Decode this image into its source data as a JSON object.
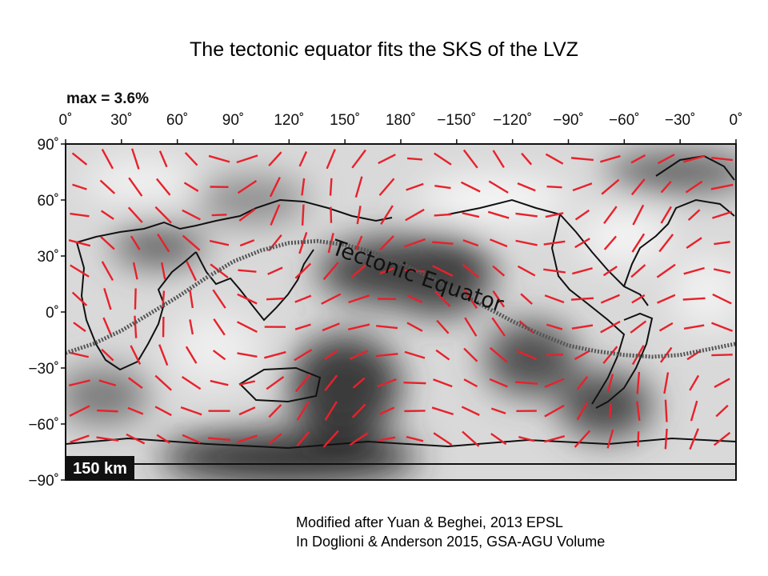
{
  "slide": {
    "title": "The tectonic equator fits the SKS of the LVZ",
    "caption": [
      "Modified after Yuan & Beghei, 2013 EPSL",
      "In Doglioni & Anderson 2015, GSA-AGU Volume"
    ]
  },
  "map": {
    "max_label": "max = 3.6%",
    "depth_label": "150 km",
    "annotation": "Tectonic Equator",
    "longitude_ticks": [
      "0˚",
      "30˚",
      "60˚",
      "90˚",
      "120˚",
      "150˚",
      "180˚",
      "−150˚",
      "−120˚",
      "−90˚",
      "−60˚",
      "−30˚",
      "0˚"
    ],
    "latitude_ticks": [
      "90˚",
      "60˚",
      "30˚",
      "0˚",
      "−30˚",
      "−60˚",
      "−90˚"
    ],
    "lon_range": [
      0,
      360
    ],
    "lat_range": [
      -90,
      90
    ],
    "grid_step_deg": 15,
    "colors": {
      "anisotropy_bar": "#e8212b",
      "coastline": "#111111",
      "equator": "#555555",
      "background_light": "#f2f2f2",
      "background_dark": "#3a3a3a"
    },
    "tectonic_equator_path": [
      [
        0,
        -22
      ],
      [
        15,
        -17
      ],
      [
        30,
        -10
      ],
      [
        45,
        -1
      ],
      [
        60,
        8
      ],
      [
        75,
        18
      ],
      [
        90,
        27
      ],
      [
        105,
        33
      ],
      [
        120,
        37
      ],
      [
        135,
        38
      ],
      [
        150,
        36
      ],
      [
        165,
        32
      ],
      [
        180,
        26
      ],
      [
        195,
        19
      ],
      [
        210,
        11
      ],
      [
        225,
        3
      ],
      [
        240,
        -5
      ],
      [
        255,
        -12
      ],
      [
        270,
        -18
      ],
      [
        285,
        -21
      ],
      [
        300,
        -23
      ],
      [
        315,
        -24
      ],
      [
        330,
        -23
      ],
      [
        345,
        -20
      ],
      [
        360,
        -17
      ]
    ]
  }
}
